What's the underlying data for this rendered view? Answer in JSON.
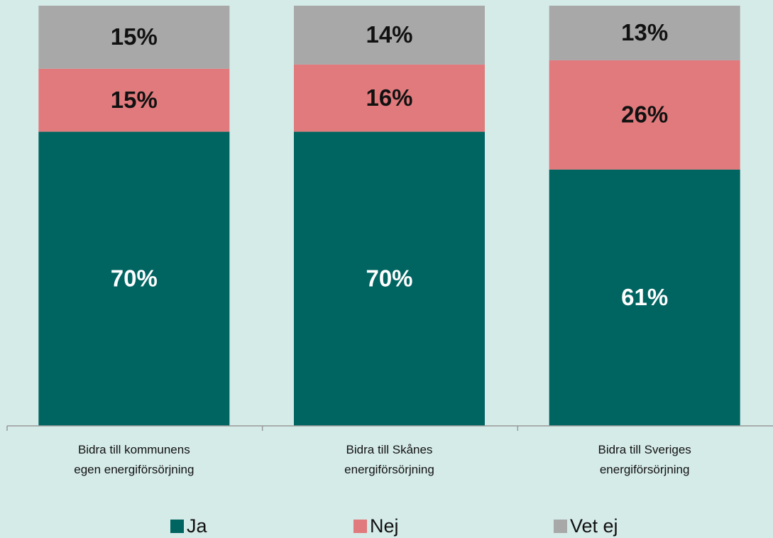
{
  "chart_data": {
    "type": "stacked_bar",
    "categories": [
      "Bidra till kommunens\negen energiförsörjning",
      "Bidra till Skånes\nenergiförsörjning",
      "Bidra till Sveriges\nenergiförsörjning"
    ],
    "series": [
      {
        "name": "Ja",
        "color": "#006461",
        "values": [
          70,
          70,
          61
        ],
        "value_labels": [
          "70%",
          "70%",
          "61%"
        ]
      },
      {
        "name": "Nej",
        "color": "#e07a7c",
        "values": [
          15,
          16,
          26
        ],
        "value_labels": [
          "15%",
          "16%",
          "26%"
        ]
      },
      {
        "name": "Vet ej",
        "color": "#a8a8a8",
        "values": [
          15,
          14,
          13
        ],
        "value_labels": [
          "15%",
          "14%",
          "13%"
        ]
      }
    ],
    "ylim": [
      0,
      100
    ],
    "legend": "bottom"
  }
}
